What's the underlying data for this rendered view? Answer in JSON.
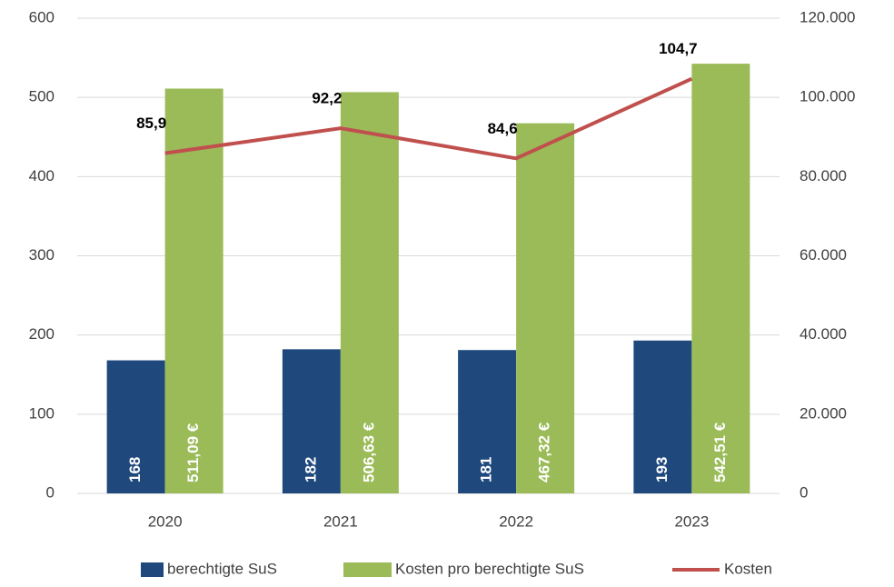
{
  "chart_data": {
    "type": "bar",
    "categories": [
      "2020",
      "2021",
      "2022",
      "2023"
    ],
    "series": [
      {
        "name": "berechtigte SuS",
        "color": "#1f497d",
        "values": [
          168,
          182,
          181,
          193
        ]
      },
      {
        "name": "Kosten pro berechtigte SuS",
        "color": "#9bbb59",
        "values": [
          511.09,
          506.63,
          467.32,
          542.51
        ],
        "value_labels": [
          "511,09 €",
          "506,63 €",
          "467,32 €",
          "542,51 €"
        ]
      },
      {
        "name": "Kosten",
        "type": "line",
        "axis": "y2",
        "color": "#c0504d",
        "values": [
          85900,
          92200,
          84600,
          104700
        ],
        "value_labels": [
          "85,9",
          "92,2",
          "84,6",
          "104,7"
        ]
      }
    ],
    "ylim": [
      0,
      600
    ],
    "yticks": [
      0,
      100,
      200,
      300,
      400,
      500,
      600
    ],
    "y2lim": [
      0,
      120000
    ],
    "y2ticks": [
      0,
      {
        "value": 20000,
        "label": "20.000"
      },
      {
        "value": 40000,
        "label": "40.000"
      },
      {
        "value": 60000,
        "label": "60.000"
      },
      {
        "value": 80000,
        "label": "80.000"
      },
      {
        "value": 100000,
        "label": "100.000"
      },
      {
        "value": 120000,
        "label": "120.000"
      }
    ],
    "grid": true,
    "legend": "bottom"
  }
}
